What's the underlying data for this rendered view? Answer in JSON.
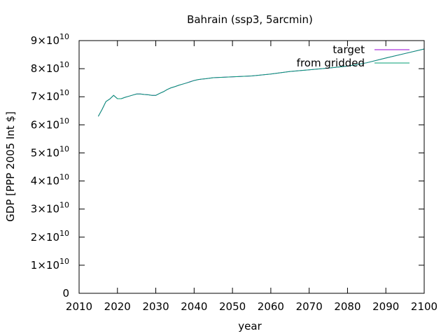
{
  "chart_data": {
    "type": "line",
    "title": "Bahrain (ssp3, 5arcmin)",
    "xlabel": "year",
    "ylabel": "GDP [PPP 2005 Int $]",
    "xlim": [
      2010,
      2100
    ],
    "ylim": [
      0,
      90000000000
    ],
    "x_ticks": [
      "2010",
      "2020",
      "2030",
      "2040",
      "2050",
      "2060",
      "2070",
      "2080",
      "2090",
      "2100"
    ],
    "y_ticks": [
      {
        "mantissa": "0",
        "exp": ""
      },
      {
        "mantissa": "1×10",
        "exp": "10"
      },
      {
        "mantissa": "2×10",
        "exp": "10"
      },
      {
        "mantissa": "3×10",
        "exp": "10"
      },
      {
        "mantissa": "4×10",
        "exp": "10"
      },
      {
        "mantissa": "5×10",
        "exp": "10"
      },
      {
        "mantissa": "6×10",
        "exp": "10"
      },
      {
        "mantissa": "7×10",
        "exp": "10"
      },
      {
        "mantissa": "8×10",
        "exp": "10"
      },
      {
        "mantissa": "9×10",
        "exp": "10"
      }
    ],
    "legend_position": "top-right",
    "grid": false,
    "series": [
      {
        "name": "target",
        "color": "#9400d3",
        "x": [
          2015,
          2016,
          2017,
          2018,
          2019,
          2020,
          2021,
          2022,
          2023,
          2024,
          2025,
          2026,
          2027,
          2028,
          2029,
          2030,
          2031,
          2032,
          2033,
          2034,
          2035,
          2036,
          2037,
          2038,
          2039,
          2040,
          2041,
          2042,
          2043,
          2044,
          2045,
          2050,
          2055,
          2060,
          2065,
          2070,
          2075,
          2080,
          2085,
          2090,
          2095,
          2100
        ],
        "y": [
          63000000000,
          65500000000,
          68300000000,
          69200000000,
          70500000000,
          69300000000,
          69300000000,
          69800000000,
          70200000000,
          70600000000,
          71000000000,
          71000000000,
          70800000000,
          70700000000,
          70500000000,
          70500000000,
          71200000000,
          71800000000,
          72600000000,
          73200000000,
          73600000000,
          74100000000,
          74500000000,
          74900000000,
          75400000000,
          75800000000,
          76100000000,
          76300000000,
          76400000000,
          76600000000,
          76800000000,
          77100000000,
          77400000000,
          78100000000,
          79000000000,
          79600000000,
          80200000000,
          80900000000,
          82100000000,
          83800000000,
          85400000000,
          87000000000
        ]
      },
      {
        "name": "from gridded",
        "color": "#009e73",
        "x": [
          2015,
          2016,
          2017,
          2018,
          2019,
          2020,
          2021,
          2022,
          2023,
          2024,
          2025,
          2026,
          2027,
          2028,
          2029,
          2030,
          2031,
          2032,
          2033,
          2034,
          2035,
          2036,
          2037,
          2038,
          2039,
          2040,
          2041,
          2042,
          2043,
          2044,
          2045,
          2050,
          2055,
          2060,
          2065,
          2070,
          2075,
          2080,
          2085,
          2090,
          2095,
          2100
        ],
        "y": [
          63000000000,
          65500000000,
          68300000000,
          69200000000,
          70500000000,
          69300000000,
          69300000000,
          69800000000,
          70200000000,
          70600000000,
          71000000000,
          71000000000,
          70800000000,
          70700000000,
          70500000000,
          70500000000,
          71200000000,
          71800000000,
          72600000000,
          73200000000,
          73600000000,
          74100000000,
          74500000000,
          74900000000,
          75300000000,
          75800000000,
          76100000000,
          76300000000,
          76400000000,
          76600000000,
          76800000000,
          77100000000,
          77400000000,
          78100000000,
          79000000000,
          79600000000,
          80200000000,
          80900000000,
          82100000000,
          83800000000,
          85400000000,
          87000000000
        ]
      }
    ]
  }
}
